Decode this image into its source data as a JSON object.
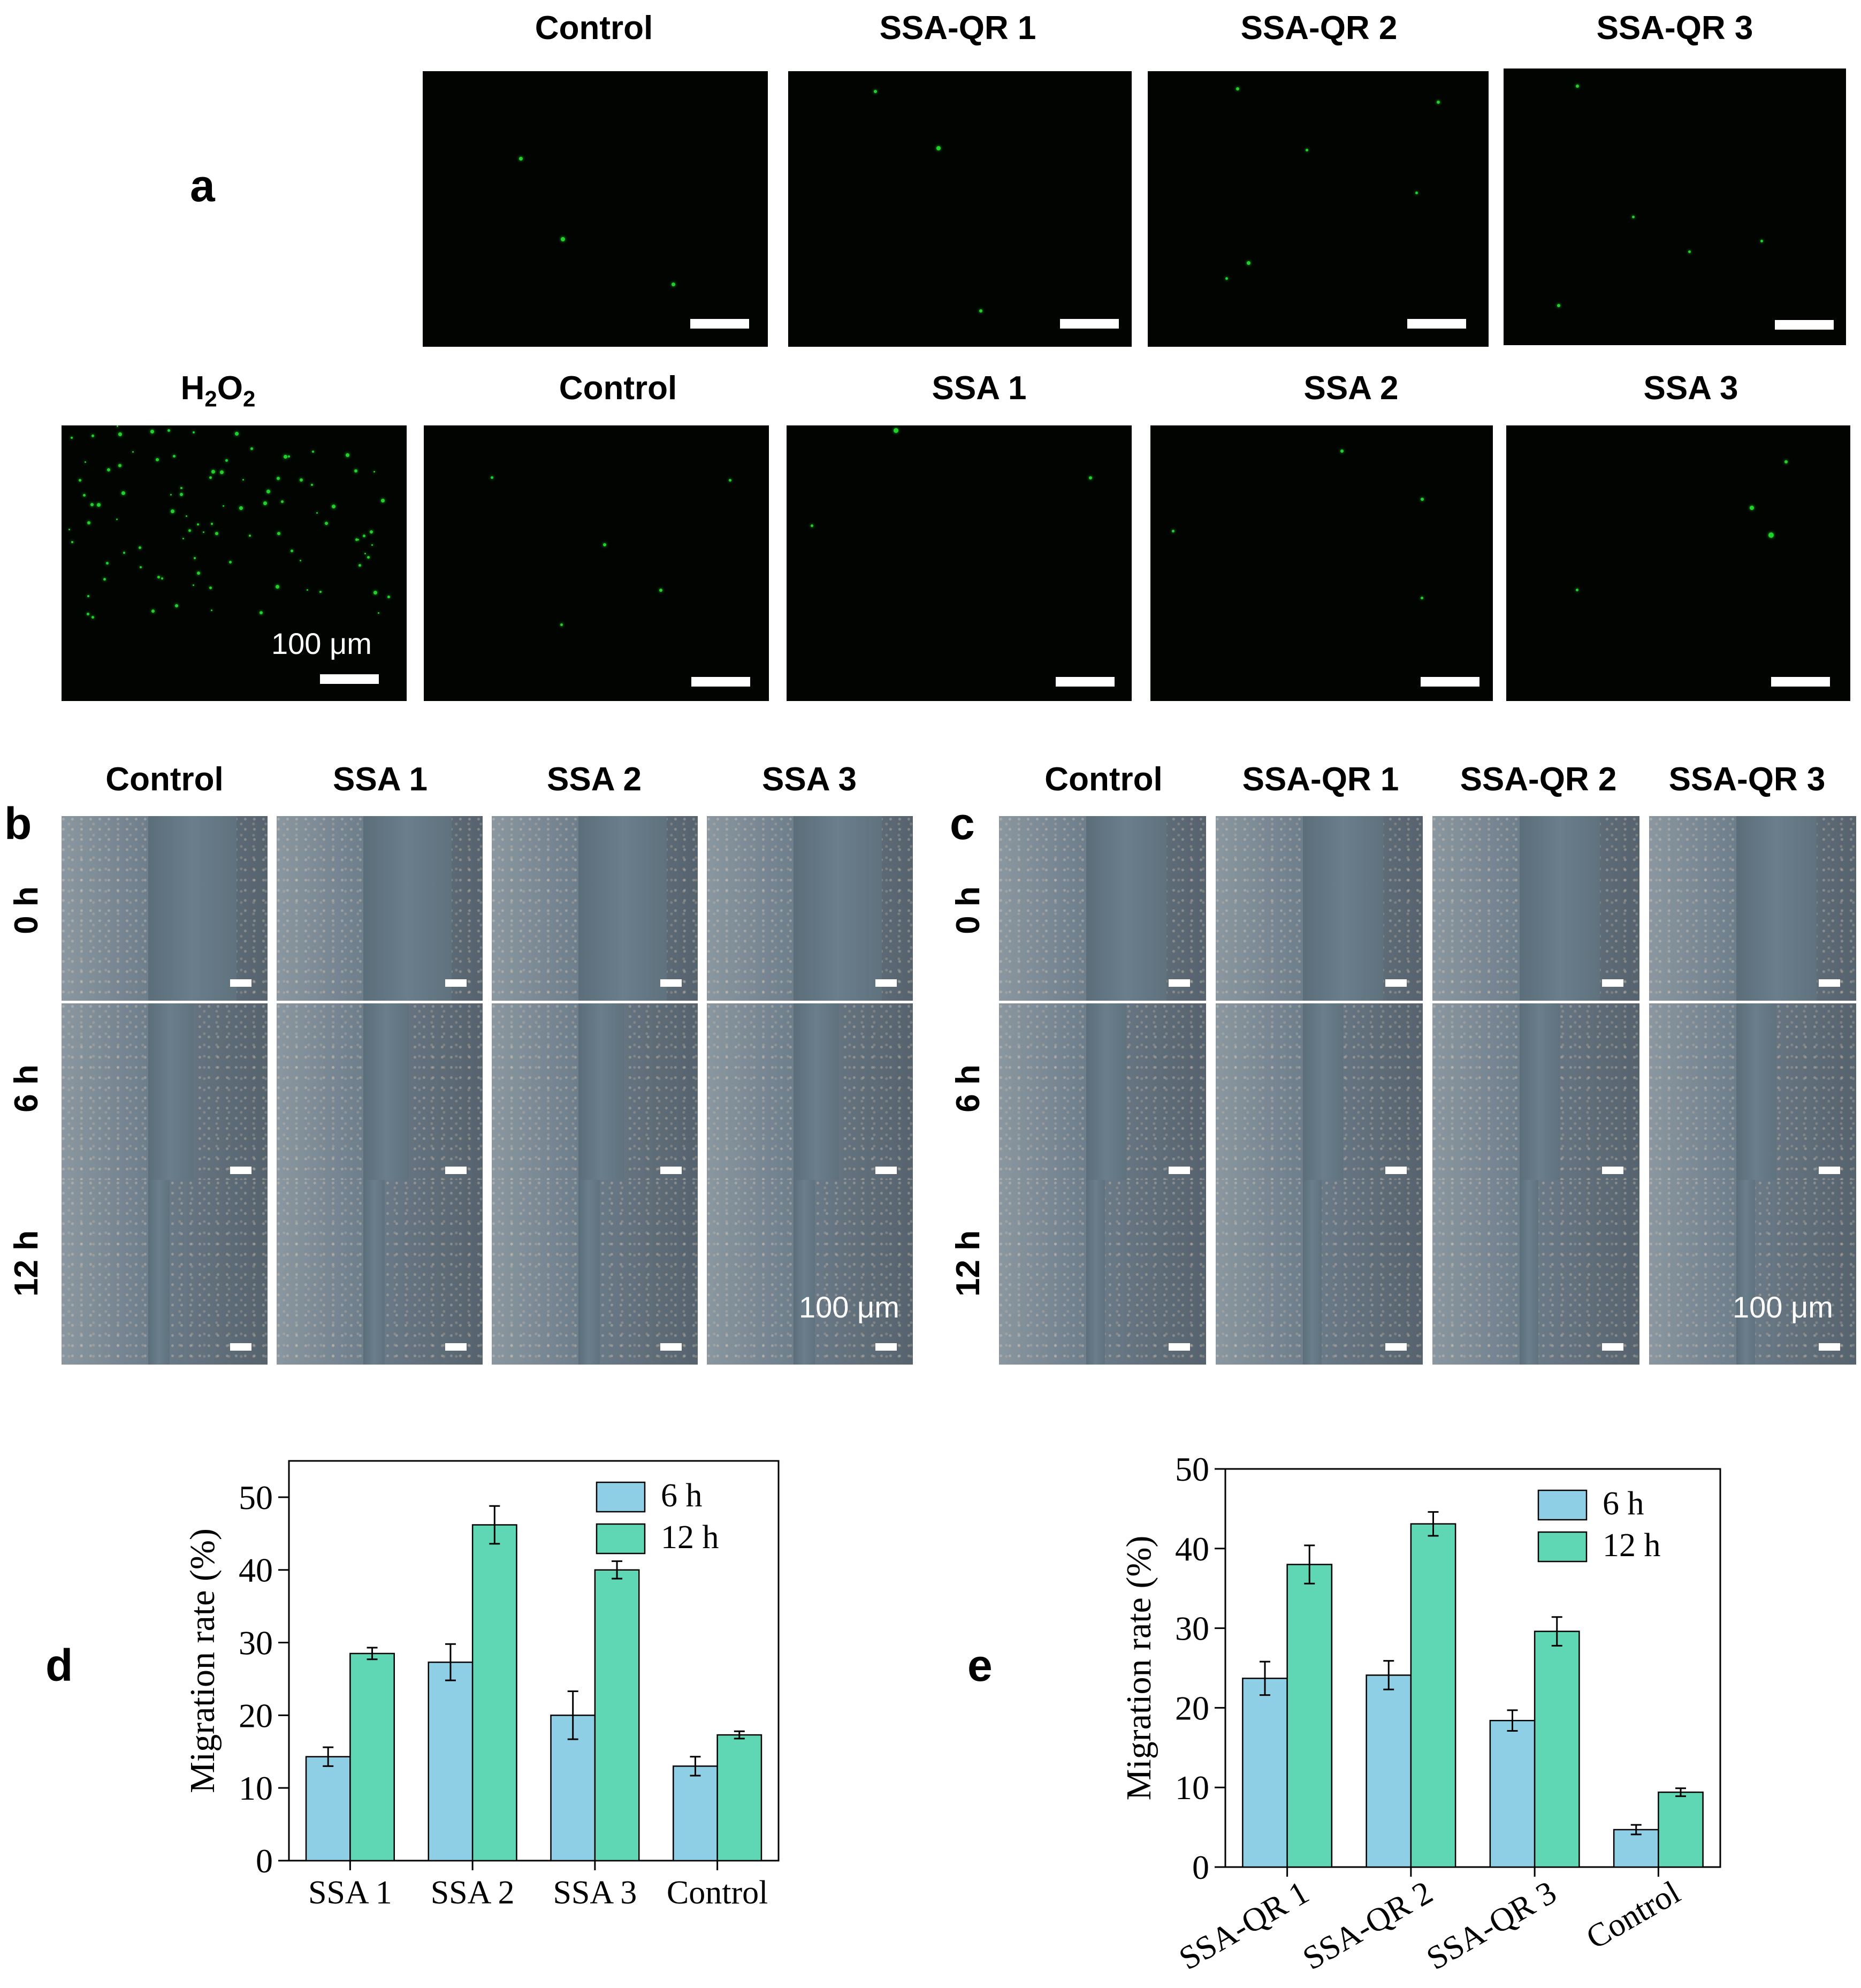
{
  "panels": {
    "a": "a",
    "b": "b",
    "c": "c",
    "d": "d",
    "e": "e"
  },
  "panel_a": {
    "row1": [
      "Control",
      "SSA-QR 1",
      "SSA-QR 2",
      "SSA-QR 3"
    ],
    "row2": [
      "H2O2",
      "Control",
      "SSA 1",
      "SSA 2",
      "SSA 3"
    ],
    "h2o2": {
      "h": "H",
      "sub1": "2",
      "o": "O",
      "sub2": "2"
    },
    "scale_label": "100 μm"
  },
  "panel_b": {
    "columns": [
      "Control",
      "SSA 1",
      "SSA 2",
      "SSA 3"
    ],
    "rows": [
      "0 h",
      "6 h",
      "12 h"
    ],
    "scale_label": "100 μm"
  },
  "panel_c": {
    "columns": [
      "Control",
      "SSA-QR 1",
      "SSA-QR 2",
      "SSA-QR 3"
    ],
    "rows": [
      "0 h",
      "6 h",
      "12 h"
    ],
    "scale_label": "100 μm"
  },
  "colors": {
    "series_6h": "#8ecfe6",
    "series_12h": "#5fd6b4",
    "fluorescence": "#1fd12a"
  },
  "chart_data": [
    {
      "type": "bar",
      "panel": "d",
      "categories": [
        "SSA 1",
        "SSA 2",
        "SSA 3",
        "Control"
      ],
      "series": [
        {
          "name": "6 h",
          "values": [
            14.3,
            27.3,
            20.0,
            13.0
          ],
          "errors": [
            1.3,
            2.5,
            3.3,
            1.3
          ]
        },
        {
          "name": "12 h",
          "values": [
            28.5,
            46.2,
            40.0,
            17.3
          ],
          "errors": [
            0.8,
            2.6,
            1.2,
            0.5
          ]
        }
      ],
      "ylabel": "Migration rate (%)",
      "ylim": [
        0,
        55
      ],
      "yticks": [
        0,
        10,
        20,
        30,
        40,
        50
      ],
      "legend": "top-right"
    },
    {
      "type": "bar",
      "panel": "e",
      "categories": [
        "SSA-QR 1",
        "SSA-QR 2",
        "SSA-QR 3",
        "Control"
      ],
      "series": [
        {
          "name": "6 h",
          "values": [
            23.7,
            24.1,
            18.4,
            4.7
          ],
          "errors": [
            2.1,
            1.8,
            1.3,
            0.6
          ]
        },
        {
          "name": "12 h",
          "values": [
            38.0,
            43.1,
            29.6,
            9.4
          ],
          "errors": [
            2.4,
            1.5,
            1.8,
            0.5
          ]
        }
      ],
      "ylabel": "Migration rate (%)",
      "ylim": [
        0,
        50
      ],
      "yticks": [
        0,
        10,
        20,
        30,
        40,
        50
      ],
      "legend": "top-right"
    }
  ]
}
